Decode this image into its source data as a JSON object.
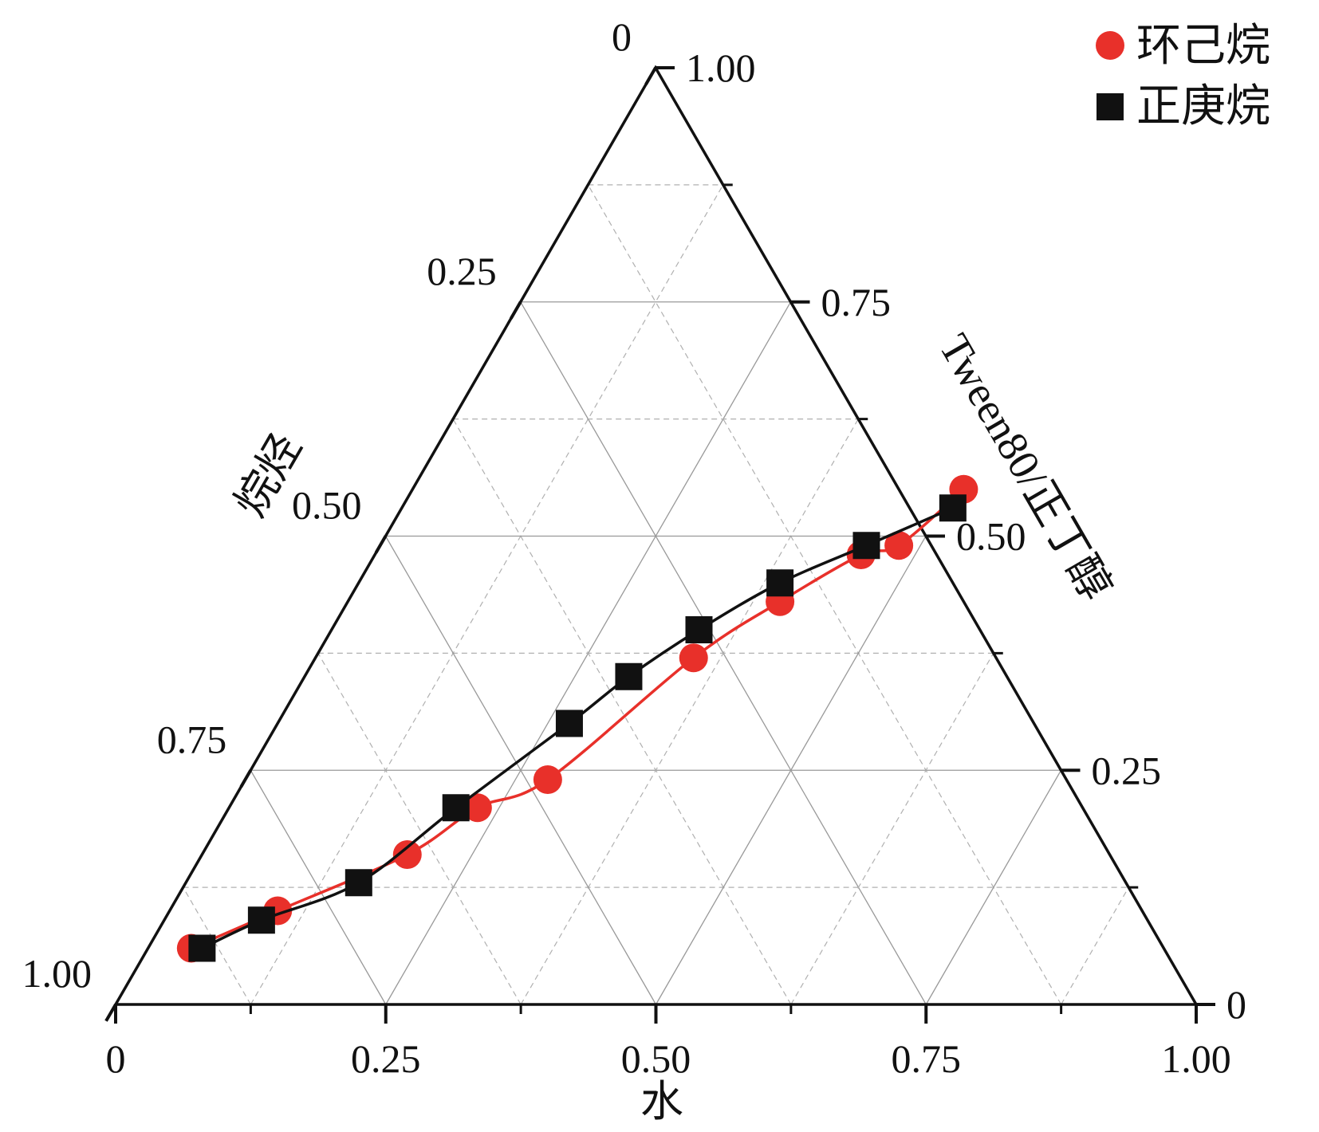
{
  "chart_data": {
    "type": "ternary",
    "axes": {
      "water": {
        "label": "水",
        "tick_labels": [
          "0",
          "0.25",
          "0.50",
          "0.75",
          "1.00"
        ]
      },
      "alkane": {
        "label": "烷烃",
        "tick_labels": [
          "0",
          "0.25",
          "0.50",
          "0.75",
          "1.00"
        ]
      },
      "surfactant": {
        "label": "Tween80/正丁醇",
        "tick_labels": [
          "0",
          "0.25",
          "0.50",
          "0.75",
          "1.00"
        ]
      }
    },
    "tick_values": [
      0,
      0.25,
      0.5,
      0.75,
      1.0
    ],
    "grid": true,
    "legend_position": "top-right",
    "series": [
      {
        "name": "环己烷",
        "marker": "circle",
        "color": "#e8302a",
        "points": [
          {
            "water": 0.04,
            "alkane": 0.9,
            "surfactant": 0.06
          },
          {
            "water": 0.1,
            "alkane": 0.8,
            "surfactant": 0.1
          },
          {
            "water": 0.19,
            "alkane": 0.65,
            "surfactant": 0.16
          },
          {
            "water": 0.23,
            "alkane": 0.56,
            "surfactant": 0.21
          },
          {
            "water": 0.28,
            "alkane": 0.48,
            "surfactant": 0.24
          },
          {
            "water": 0.35,
            "alkane": 0.28,
            "surfactant": 0.37
          },
          {
            "water": 0.4,
            "alkane": 0.17,
            "surfactant": 0.43
          },
          {
            "water": 0.45,
            "alkane": 0.07,
            "surfactant": 0.48
          },
          {
            "water": 0.48,
            "alkane": 0.03,
            "surfactant": 0.49
          },
          {
            "water": 0.51,
            "alkane": -0.06,
            "surfactant": 0.55
          }
        ]
      },
      {
        "name": "正庚烷",
        "marker": "square",
        "color": "#111111",
        "points": [
          {
            "water": 0.05,
            "alkane": 0.89,
            "surfactant": 0.06
          },
          {
            "water": 0.09,
            "alkane": 0.82,
            "surfactant": 0.09
          },
          {
            "water": 0.16,
            "alkane": 0.71,
            "surfactant": 0.13
          },
          {
            "water": 0.21,
            "alkane": 0.58,
            "surfactant": 0.21
          },
          {
            "water": 0.27,
            "alkane": 0.43,
            "surfactant": 0.3
          },
          {
            "water": 0.3,
            "alkane": 0.35,
            "surfactant": 0.35
          },
          {
            "water": 0.34,
            "alkane": 0.26,
            "surfactant": 0.4
          },
          {
            "water": 0.39,
            "alkane": 0.16,
            "surfactant": 0.45
          },
          {
            "water": 0.45,
            "alkane": 0.06,
            "surfactant": 0.49
          },
          {
            "water": 0.51,
            "alkane": -0.04,
            "surfactant": 0.53
          }
        ]
      }
    ]
  }
}
